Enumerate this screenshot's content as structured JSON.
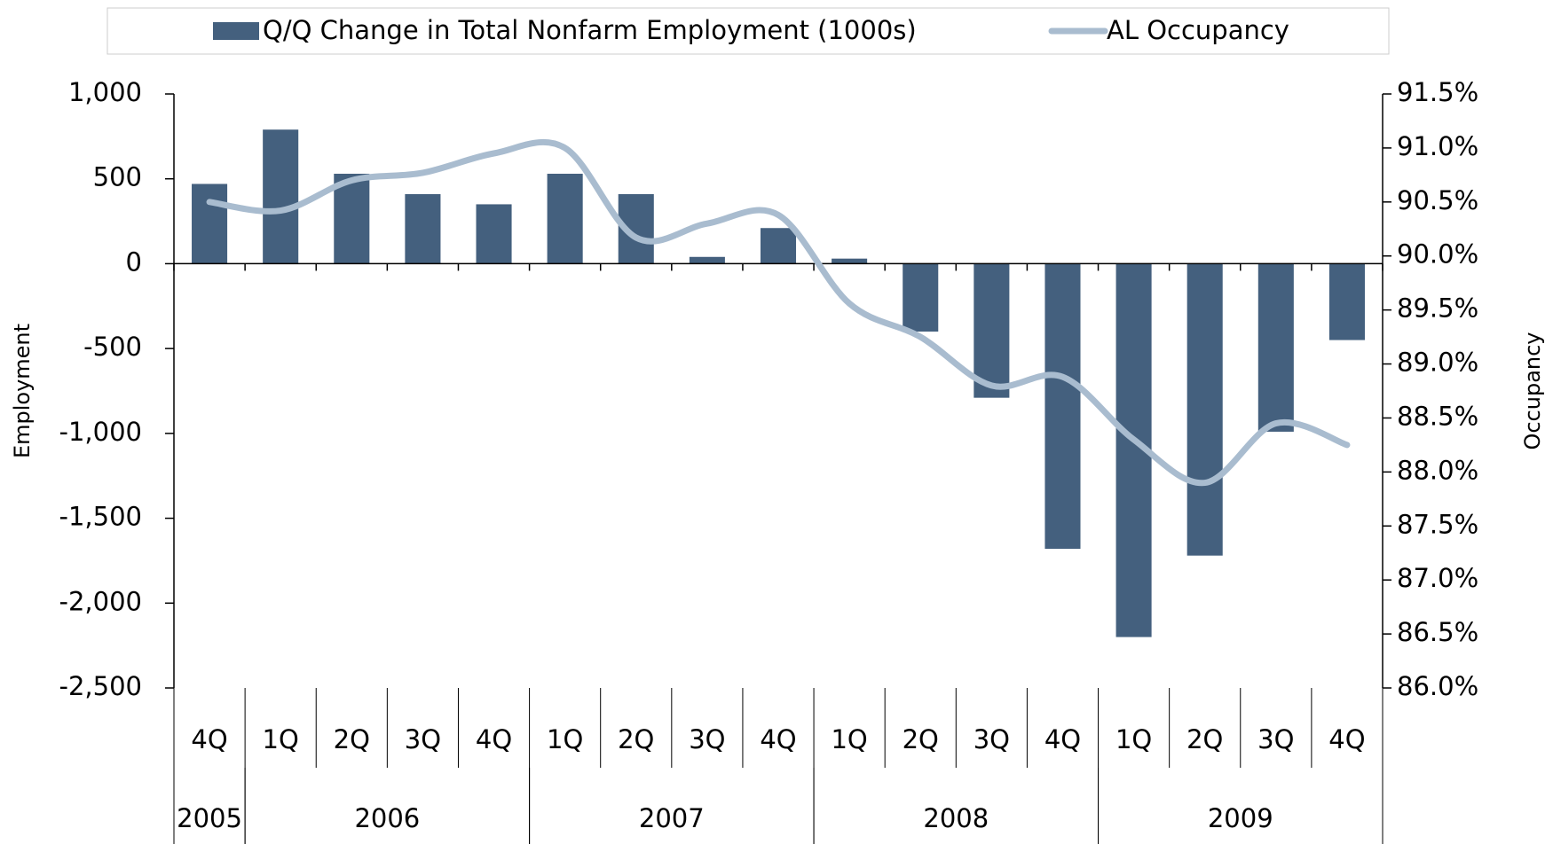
{
  "chart_data": {
    "type": "bar-line",
    "categories": [
      "4Q",
      "1Q",
      "2Q",
      "3Q",
      "4Q",
      "1Q",
      "2Q",
      "3Q",
      "4Q",
      "1Q",
      "2Q",
      "3Q",
      "4Q",
      "1Q",
      "2Q",
      "3Q",
      "4Q"
    ],
    "years": [
      {
        "label": "2005",
        "count": 1
      },
      {
        "label": "2006",
        "count": 4
      },
      {
        "label": "2007",
        "count": 4
      },
      {
        "label": "2008",
        "count": 4
      },
      {
        "label": "2009",
        "count": 4
      }
    ],
    "series": [
      {
        "name": "Q/Q Change in Total Nonfarm Employment (1000s)",
        "type": "bar",
        "color": "#44607e",
        "values": [
          470,
          790,
          530,
          410,
          350,
          530,
          410,
          40,
          210,
          30,
          -400,
          -790,
          -1680,
          -2200,
          -1720,
          -990,
          -450
        ]
      },
      {
        "name": "AL Occupancy",
        "type": "line",
        "axis": "y2",
        "color": "#a9bccf",
        "values": [
          90.5,
          90.42,
          90.7,
          90.77,
          90.95,
          91.0,
          90.17,
          90.3,
          90.38,
          89.56,
          89.25,
          88.8,
          88.88,
          88.3,
          87.9,
          88.45,
          88.25
        ]
      }
    ],
    "ylabel": "Employment",
    "y2label": "Occupancy",
    "ylim": [
      -2500,
      1000
    ],
    "yticks": [
      {
        "value": -2500,
        "label": "-2,500"
      },
      {
        "value": -2000,
        "label": "-2,000"
      },
      {
        "value": -1500,
        "label": "-1,500"
      },
      {
        "value": -1000,
        "label": "-1,000"
      },
      -500,
      0,
      500,
      {
        "value": 1000,
        "label": "1,000"
      }
    ],
    "y2lim": [
      86,
      91.5
    ],
    "y2ticks": [
      {
        "value": 86,
        "label": "86.0%"
      },
      {
        "value": 86.5,
        "label": "86.5%"
      },
      {
        "value": 87,
        "label": "87.0%"
      },
      {
        "value": 87.5,
        "label": "87.5%"
      },
      {
        "value": 88,
        "label": "88.0%"
      },
      {
        "value": 88.5,
        "label": "88.5%"
      },
      {
        "value": 89,
        "label": "89.0%"
      },
      {
        "value": 89.5,
        "label": "89.5%"
      },
      {
        "value": 90,
        "label": "90.0%"
      },
      {
        "value": 90.5,
        "label": "90.5%"
      },
      {
        "value": 91,
        "label": "91.0%"
      },
      {
        "value": 91.5,
        "label": "91.5%"
      }
    ],
    "legend": "top",
    "grid": false
  }
}
